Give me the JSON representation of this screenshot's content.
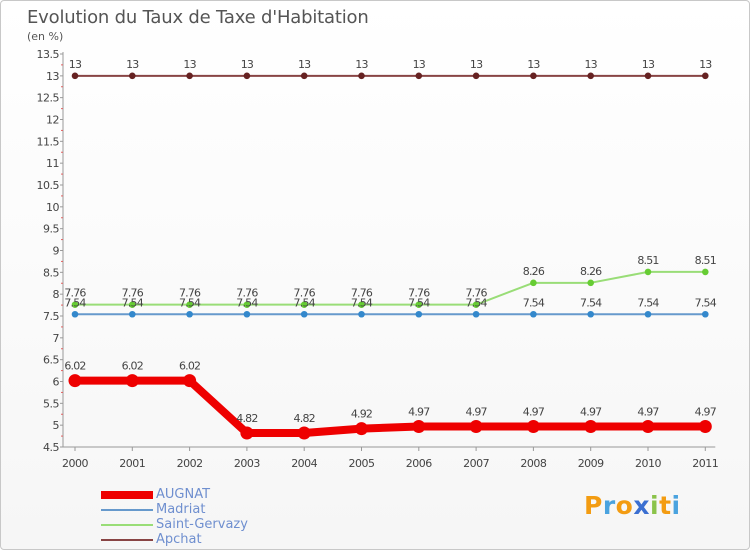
{
  "title": "Evolution du Taux de Taxe d'Habitation",
  "subtitle": "(en %)",
  "logo": {
    "text": "Proxiti",
    "letters": [
      "P",
      "r",
      "o",
      "x",
      "i",
      "t",
      "i"
    ],
    "colors": [
      "#f39c12",
      "#4aa3df",
      "#f39c12",
      "#3b6fd1",
      "#8bc34a",
      "#f39c12",
      "#4aa3df"
    ]
  },
  "chart_data": {
    "type": "line",
    "title": "Evolution du Taux de Taxe d'Habitation",
    "ylabel": "(en %)",
    "xlabel": "",
    "categories": [
      "2000",
      "2001",
      "2002",
      "2003",
      "2004",
      "2005",
      "2006",
      "2007",
      "2008",
      "2009",
      "2010",
      "2011"
    ],
    "ylim": [
      4.5,
      13.5
    ],
    "yticks": [
      "4.5",
      "5",
      "5.5",
      "6",
      "6.5",
      "7",
      "7.5",
      "8",
      "8.5",
      "9",
      "9.5",
      "10",
      "10.5",
      "11",
      "11.5",
      "12",
      "12.5",
      "13",
      "13.5"
    ],
    "grid": false,
    "legend_position": "bottom-left",
    "series": [
      {
        "name": "AUGNAT",
        "color": "#ee0000",
        "thick": true,
        "values": [
          6.02,
          6.02,
          6.02,
          4.82,
          4.82,
          4.92,
          4.97,
          4.97,
          4.97,
          4.97,
          4.97,
          4.97
        ],
        "labels": [
          "6.02",
          "6.02",
          "6.02",
          "4.82",
          "4.82",
          "4.92",
          "4.97",
          "4.97",
          "4.97",
          "4.97",
          "4.97",
          "4.97"
        ]
      },
      {
        "name": "Madriat",
        "color": "#6699cc",
        "marker": "#3388cc",
        "thick": false,
        "values": [
          7.54,
          7.54,
          7.54,
          7.54,
          7.54,
          7.54,
          7.54,
          7.54,
          7.54,
          7.54,
          7.54,
          7.54
        ],
        "labels": [
          "7.54",
          "7.54",
          "7.54",
          "7.54",
          "7.54",
          "7.54",
          "7.54",
          "7.54",
          "7.54",
          "7.54",
          "7.54",
          "7.54"
        ]
      },
      {
        "name": "Saint-Gervazy",
        "color": "#99dd77",
        "marker": "#66cc33",
        "thick": false,
        "values": [
          7.76,
          7.76,
          7.76,
          7.76,
          7.76,
          7.76,
          7.76,
          7.76,
          8.26,
          8.26,
          8.51,
          8.51
        ],
        "labels": [
          "7.76",
          "7.76",
          "7.76",
          "7.76",
          "7.76",
          "7.76",
          "7.76",
          "7.76",
          "8.26",
          "8.26",
          "8.51",
          "8.51"
        ]
      },
      {
        "name": "Apchat",
        "color": "#884444",
        "marker": "#662222",
        "thick": false,
        "values": [
          13,
          13,
          13,
          13,
          13,
          13,
          13,
          13,
          13,
          13,
          13,
          13
        ],
        "labels": [
          "13",
          "13",
          "13",
          "13",
          "13",
          "13",
          "13",
          "13",
          "13",
          "13",
          "13",
          "13"
        ]
      }
    ]
  }
}
